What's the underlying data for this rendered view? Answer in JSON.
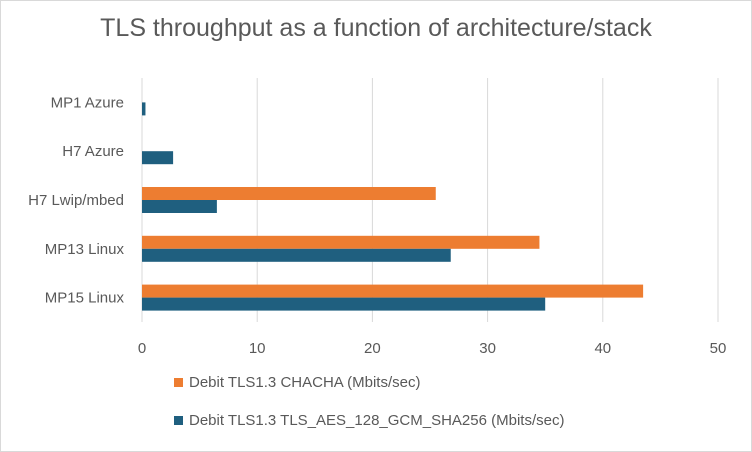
{
  "chart_data": {
    "type": "bar",
    "orientation": "horizontal",
    "title": "TLS throughput as a function of architecture/stack",
    "categories": [
      "MP1 Azure",
      "H7 Azure",
      "H7 Lwip/mbed",
      "MP13 Linux",
      "MP15 Linux"
    ],
    "series": [
      {
        "name": "Debit TLS1.3 CHACHA (Mbits/sec)",
        "color": "#ED7D31",
        "values": [
          0,
          0,
          25.5,
          34.5,
          43.5
        ]
      },
      {
        "name": "Debit TLS1.3 TLS_AES_128_GCM_SHA256 (Mbits/sec)",
        "color": "#1F5F7F",
        "values": [
          0.3,
          2.7,
          6.5,
          26.8,
          35
        ]
      }
    ],
    "xlim": [
      0,
      50
    ],
    "xticks": [
      0,
      10,
      20,
      30,
      40,
      50
    ],
    "gridlines": true,
    "legend_position": "bottom"
  }
}
